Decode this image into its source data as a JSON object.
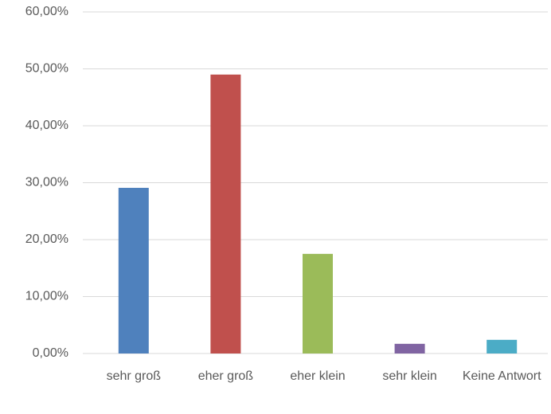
{
  "chart_data": {
    "type": "bar",
    "categories": [
      "sehr groß",
      "eher groß",
      "eher klein",
      "sehr klein",
      "Keine Antwort"
    ],
    "values": [
      29.1,
      49.0,
      17.5,
      1.7,
      2.4
    ],
    "colors": [
      "#4f81bd",
      "#c0504d",
      "#9bbb59",
      "#8064a2",
      "#4bacc6"
    ],
    "ylim": [
      0,
      60
    ],
    "yticks": [
      {
        "value": 0,
        "label": "0,00%"
      },
      {
        "value": 10,
        "label": "10,00%"
      },
      {
        "value": 20,
        "label": "20,00%"
      },
      {
        "value": 30,
        "label": "30,00%"
      },
      {
        "value": 40,
        "label": "40,00%"
      },
      {
        "value": 50,
        "label": "50,00%"
      },
      {
        "value": 60,
        "label": "60,00%"
      }
    ],
    "grid": true
  }
}
